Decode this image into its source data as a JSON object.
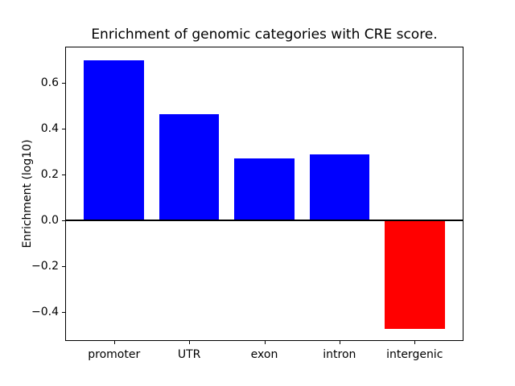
{
  "chart_data": {
    "type": "bar",
    "title": "Enrichment of genomic categories with CRE score.",
    "xlabel": "",
    "ylabel": "Enrichment (log10)",
    "categories": [
      "promoter",
      "UTR",
      "exon",
      "intron",
      "intergenic"
    ],
    "values": [
      0.7,
      0.465,
      0.27,
      0.29,
      -0.475
    ],
    "bar_colors": [
      "#0000ff",
      "#0000ff",
      "#0000ff",
      "#0000ff",
      "#ff0000"
    ],
    "positive_color": "#0000ff",
    "negative_color": "#ff0000",
    "yticks": [
      {
        "value": 0.6,
        "label": "0.6"
      },
      {
        "value": 0.4,
        "label": "0.4"
      },
      {
        "value": 0.2,
        "label": "0.2"
      },
      {
        "value": 0.0,
        "label": "0.0"
      },
      {
        "value": -0.2,
        "label": "−0.2"
      },
      {
        "value": -0.4,
        "label": "−0.4"
      }
    ],
    "ylim": [
      -0.523,
      0.756
    ],
    "xlim": [
      -0.64,
      4.64
    ],
    "bar_width": 0.8,
    "grid": false,
    "legend": null,
    "zero_line": true,
    "axis_color": "#000000",
    "text_color": "#000000",
    "background_color": "#ffffff"
  }
}
